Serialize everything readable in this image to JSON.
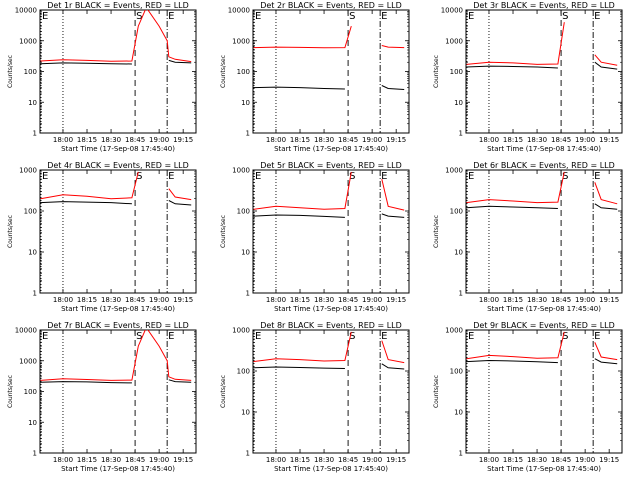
{
  "chart_data": [
    {
      "type": "line",
      "title": "Det 1r BLACK = Events, RED = LLD",
      "xlabel": "Start Time (17-Sep-08 17:45:40)",
      "ylabel": "Counts/sec",
      "yscale": "log",
      "ylim": [
        1,
        10000
      ],
      "x_ticks": [
        "18:00",
        "18:15",
        "18:30",
        "18:45",
        "19:00",
        "19:15"
      ],
      "y_ticks": [
        "1",
        "10",
        "100",
        "1000",
        "10000"
      ],
      "event_markers": [
        {
          "label": "E",
          "time": "17:45:40",
          "style": "dotted"
        },
        {
          "time": "18:00",
          "style": "dotted"
        },
        {
          "label": "S",
          "time": "18:45",
          "style": "dashed"
        },
        {
          "label": "E",
          "time": "19:05",
          "style": "dash-dot"
        }
      ],
      "series": [
        {
          "name": "Events",
          "color": "#000000",
          "x": [
            "17:46",
            "18:00",
            "18:15",
            "18:30",
            "18:43",
            "18:47",
            "18:52",
            "19:00",
            "19:05",
            "19:06",
            "19:10",
            "19:20"
          ],
          "values": [
            180,
            190,
            185,
            180,
            175,
            null,
            null,
            null,
            null,
            230,
            200,
            190
          ]
        },
        {
          "name": "LLD",
          "color": "#ff0000",
          "x": [
            "17:46",
            "18:00",
            "18:15",
            "18:30",
            "18:43",
            "18:47",
            "18:52",
            "19:00",
            "19:05",
            "19:06",
            "19:10",
            "19:20"
          ],
          "values": [
            220,
            240,
            230,
            215,
            220,
            3000,
            12000,
            3000,
            1000,
            300,
            250,
            210
          ]
        }
      ]
    },
    {
      "type": "line",
      "title": "Det 2r BLACK = Events, RED = LLD",
      "xlabel": "Start Time (17-Sep-08 17:45:40)",
      "ylabel": "Counts/sec",
      "yscale": "log",
      "ylim": [
        1,
        10000
      ],
      "x_ticks": [
        "18:00",
        "18:15",
        "18:30",
        "18:45",
        "19:00",
        "19:15"
      ],
      "y_ticks": [
        "1",
        "10",
        "100",
        "1000",
        "10000"
      ],
      "event_markers": [
        {
          "label": "E",
          "time": "17:45:40",
          "style": "dotted"
        },
        {
          "time": "18:00",
          "style": "dotted"
        },
        {
          "label": "S",
          "time": "18:45",
          "style": "dashed"
        },
        {
          "label": "E",
          "time": "19:05",
          "style": "dash-dot"
        }
      ],
      "series": [
        {
          "name": "Events",
          "color": "#000000",
          "x": [
            "17:46",
            "18:00",
            "18:15",
            "18:30",
            "18:43",
            "18:47",
            "18:52",
            "19:00",
            "19:05",
            "19:06",
            "19:10",
            "19:20"
          ],
          "values": [
            30,
            31,
            30,
            28,
            27,
            null,
            null,
            null,
            null,
            35,
            28,
            26
          ]
        },
        {
          "name": "LLD",
          "color": "#ff0000",
          "x": [
            "17:46",
            "18:00",
            "18:15",
            "18:30",
            "18:43",
            "18:47",
            "18:52",
            "19:00",
            "19:05",
            "19:06",
            "19:10",
            "19:20"
          ],
          "values": [
            600,
            620,
            610,
            590,
            600,
            3000,
            null,
            null,
            null,
            700,
            620,
            600
          ]
        }
      ]
    },
    {
      "type": "line",
      "title": "Det 3r BLACK = Events, RED = LLD",
      "xlabel": "Start Time (17-Sep-08 17:45:40)",
      "ylabel": "Counts/sec",
      "yscale": "log",
      "ylim": [
        1,
        10000
      ],
      "x_ticks": [
        "18:00",
        "18:15",
        "18:30",
        "18:45",
        "19:00",
        "19:15"
      ],
      "y_ticks": [
        "1",
        "10",
        "100",
        "1000",
        "10000"
      ],
      "event_markers": [
        {
          "label": "E",
          "time": "17:45:40",
          "style": "dotted"
        },
        {
          "time": "18:00",
          "style": "dotted"
        },
        {
          "label": "S",
          "time": "18:45",
          "style": "dashed"
        },
        {
          "label": "E",
          "time": "19:05",
          "style": "dash-dot"
        }
      ],
      "series": [
        {
          "name": "Events",
          "color": "#000000",
          "x": [
            "17:46",
            "18:00",
            "18:15",
            "18:30",
            "18:43",
            "18:47",
            "18:52",
            "19:00",
            "19:05",
            "19:06",
            "19:10",
            "19:20"
          ],
          "values": [
            140,
            150,
            145,
            140,
            130,
            null,
            null,
            null,
            null,
            200,
            140,
            120
          ]
        },
        {
          "name": "LLD",
          "color": "#ff0000",
          "x": [
            "17:46",
            "18:00",
            "18:15",
            "18:30",
            "18:43",
            "18:47",
            "18:52",
            "19:00",
            "19:05",
            "19:06",
            "19:10",
            "19:20"
          ],
          "values": [
            170,
            200,
            190,
            170,
            175,
            4000,
            null,
            null,
            null,
            350,
            200,
            160
          ]
        }
      ]
    },
    {
      "type": "line",
      "title": "Det 4r BLACK = Events, RED = LLD",
      "xlabel": "Start Time (17-Sep-08 17:45:40)",
      "ylabel": "Counts/sec",
      "yscale": "log",
      "ylim": [
        1,
        1000
      ],
      "x_ticks": [
        "18:00",
        "18:15",
        "18:30",
        "18:45",
        "19:00",
        "19:15"
      ],
      "y_ticks": [
        "1",
        "10",
        "100",
        "1000"
      ],
      "event_markers": [
        {
          "label": "E",
          "time": "17:45:40",
          "style": "dotted"
        },
        {
          "time": "18:00",
          "style": "dotted"
        },
        {
          "label": "S",
          "time": "18:45",
          "style": "dashed"
        },
        {
          "label": "E",
          "time": "19:05",
          "style": "dash-dot"
        }
      ],
      "series": [
        {
          "name": "Events",
          "color": "#000000",
          "x": [
            "17:46",
            "18:00",
            "18:15",
            "18:30",
            "18:43",
            "18:47",
            "18:52",
            "19:00",
            "19:05",
            "19:06",
            "19:10",
            "19:20"
          ],
          "values": [
            160,
            170,
            165,
            160,
            150,
            null,
            null,
            null,
            null,
            180,
            150,
            140
          ]
        },
        {
          "name": "LLD",
          "color": "#ff0000",
          "x": [
            "17:46",
            "18:00",
            "18:15",
            "18:30",
            "18:43",
            "18:47",
            "18:52",
            "19:00",
            "19:05",
            "19:06",
            "19:10",
            "19:20"
          ],
          "values": [
            200,
            250,
            230,
            200,
            210,
            900,
            null,
            null,
            null,
            350,
            220,
            190
          ]
        }
      ]
    },
    {
      "type": "line",
      "title": "Det 5r BLACK = Events, RED = LLD",
      "xlabel": "Start Time (17-Sep-08 17:45:40)",
      "ylabel": "Counts/sec",
      "yscale": "log",
      "ylim": [
        1,
        1000
      ],
      "x_ticks": [
        "18:00",
        "18:15",
        "18:30",
        "18:45",
        "19:00",
        "19:15"
      ],
      "y_ticks": [
        "1",
        "10",
        "100",
        "1000"
      ],
      "event_markers": [
        {
          "label": "E",
          "time": "17:45:40",
          "style": "dotted"
        },
        {
          "time": "18:00",
          "style": "dotted"
        },
        {
          "label": "S",
          "time": "18:45",
          "style": "dashed"
        },
        {
          "label": "E",
          "time": "19:05",
          "style": "dash-dot"
        }
      ],
      "series": [
        {
          "name": "Events",
          "color": "#000000",
          "x": [
            "17:46",
            "18:00",
            "18:15",
            "18:30",
            "18:43",
            "18:47",
            "18:52",
            "19:00",
            "19:05",
            "19:06",
            "19:10",
            "19:20"
          ],
          "values": [
            75,
            80,
            78,
            74,
            70,
            null,
            null,
            null,
            null,
            85,
            75,
            70
          ]
        },
        {
          "name": "LLD",
          "color": "#ff0000",
          "x": [
            "17:46",
            "18:00",
            "18:15",
            "18:30",
            "18:43",
            "18:47",
            "18:52",
            "19:00",
            "19:05",
            "19:06",
            "19:10",
            "19:20"
          ],
          "values": [
            110,
            130,
            120,
            110,
            115,
            900,
            null,
            null,
            null,
            600,
            130,
            105
          ]
        }
      ]
    },
    {
      "type": "line",
      "title": "Det 6r BLACK = Events, RED = LLD",
      "xlabel": "Start Time (17-Sep-08 17:45:40)",
      "ylabel": "Counts/sec",
      "yscale": "log",
      "ylim": [
        1,
        1000
      ],
      "x_ticks": [
        "18:00",
        "18:15",
        "18:30",
        "18:45",
        "19:00",
        "19:15"
      ],
      "y_ticks": [
        "1",
        "10",
        "100",
        "1000"
      ],
      "event_markers": [
        {
          "label": "E",
          "time": "17:45:40",
          "style": "dotted"
        },
        {
          "time": "18:00",
          "style": "dotted"
        },
        {
          "label": "S",
          "time": "18:45",
          "style": "dashed"
        },
        {
          "label": "E",
          "time": "19:05",
          "style": "dash-dot"
        }
      ],
      "series": [
        {
          "name": "Events",
          "color": "#000000",
          "x": [
            "17:46",
            "18:00",
            "18:15",
            "18:30",
            "18:43",
            "18:47",
            "18:52",
            "19:00",
            "19:05",
            "19:06",
            "19:10",
            "19:20"
          ],
          "values": [
            120,
            130,
            125,
            120,
            115,
            null,
            null,
            null,
            null,
            150,
            120,
            110
          ]
        },
        {
          "name": "LLD",
          "color": "#ff0000",
          "x": [
            "17:46",
            "18:00",
            "18:15",
            "18:30",
            "18:43",
            "18:47",
            "18:52",
            "19:00",
            "19:05",
            "19:06",
            "19:10",
            "19:20"
          ],
          "values": [
            160,
            190,
            175,
            160,
            165,
            900,
            null,
            null,
            null,
            500,
            190,
            150
          ]
        }
      ]
    },
    {
      "type": "line",
      "title": "Det 7r BLACK = Events, RED = LLD",
      "xlabel": "Start Time (17-Sep-08 17:45:40)",
      "ylabel": "Counts/sec",
      "yscale": "log",
      "ylim": [
        1,
        10000
      ],
      "x_ticks": [
        "18:00",
        "18:15",
        "18:30",
        "18:45",
        "19:00",
        "19:15"
      ],
      "y_ticks": [
        "1",
        "10",
        "100",
        "1000",
        "10000"
      ],
      "event_markers": [
        {
          "label": "E",
          "time": "17:45:40",
          "style": "dotted"
        },
        {
          "time": "18:00",
          "style": "dotted"
        },
        {
          "label": "S",
          "time": "18:45",
          "style": "dashed"
        },
        {
          "label": "E",
          "time": "19:05",
          "style": "dash-dot"
        }
      ],
      "series": [
        {
          "name": "Events",
          "color": "#000000",
          "x": [
            "17:46",
            "18:00",
            "18:15",
            "18:30",
            "18:43",
            "18:47",
            "18:52",
            "19:00",
            "19:05",
            "19:06",
            "19:10",
            "19:20"
          ],
          "values": [
            200,
            210,
            205,
            195,
            190,
            null,
            null,
            null,
            null,
            240,
            210,
            200
          ]
        },
        {
          "name": "LLD",
          "color": "#ff0000",
          "x": [
            "17:46",
            "18:00",
            "18:15",
            "18:30",
            "18:43",
            "18:47",
            "18:52",
            "19:00",
            "19:05",
            "19:06",
            "19:10",
            "19:20"
          ],
          "values": [
            230,
            260,
            245,
            230,
            235,
            3000,
            12000,
            3000,
            1000,
            300,
            250,
            230
          ]
        }
      ]
    },
    {
      "type": "line",
      "title": "Det 8r BLACK = Events, RED = LLD",
      "xlabel": "Start Time (17-Sep-08 17:45:40)",
      "ylabel": "Counts/sec",
      "yscale": "log",
      "ylim": [
        1,
        1000
      ],
      "x_ticks": [
        "18:00",
        "18:15",
        "18:30",
        "18:45",
        "19:00",
        "19:15"
      ],
      "y_ticks": [
        "1",
        "10",
        "100",
        "1000"
      ],
      "event_markers": [
        {
          "label": "E",
          "time": "17:45:40",
          "style": "dotted"
        },
        {
          "time": "18:00",
          "style": "dotted"
        },
        {
          "label": "S",
          "time": "18:45",
          "style": "dashed"
        },
        {
          "label": "E",
          "time": "19:05",
          "style": "dash-dot"
        }
      ],
      "series": [
        {
          "name": "Events",
          "color": "#000000",
          "x": [
            "17:46",
            "18:00",
            "18:15",
            "18:30",
            "18:43",
            "18:47",
            "18:52",
            "19:00",
            "19:05",
            "19:06",
            "19:10",
            "19:20"
          ],
          "values": [
            120,
            125,
            122,
            118,
            115,
            null,
            null,
            null,
            null,
            150,
            120,
            112
          ]
        },
        {
          "name": "LLD",
          "color": "#ff0000",
          "x": [
            "17:46",
            "18:00",
            "18:15",
            "18:30",
            "18:43",
            "18:47",
            "18:52",
            "19:00",
            "19:05",
            "19:06",
            "19:10",
            "19:20"
          ],
          "values": [
            170,
            200,
            190,
            175,
            180,
            900,
            null,
            null,
            null,
            550,
            190,
            160
          ]
        }
      ]
    },
    {
      "type": "line",
      "title": "Det 9r BLACK = Events, RED = LLD",
      "xlabel": "Start Time (17-Sep-08 17:45:40)",
      "ylabel": "Counts/sec",
      "yscale": "log",
      "ylim": [
        1,
        1000
      ],
      "x_ticks": [
        "18:00",
        "18:15",
        "18:30",
        "18:45",
        "19:00",
        "19:15"
      ],
      "y_ticks": [
        "1",
        "10",
        "100",
        "1000"
      ],
      "event_markers": [
        {
          "label": "E",
          "time": "17:45:40",
          "style": "dotted"
        },
        {
          "time": "18:00",
          "style": "dotted"
        },
        {
          "label": "S",
          "time": "18:45",
          "style": "dashed"
        },
        {
          "label": "E",
          "time": "19:05",
          "style": "dash-dot"
        }
      ],
      "series": [
        {
          "name": "Events",
          "color": "#000000",
          "x": [
            "17:46",
            "18:00",
            "18:15",
            "18:30",
            "18:43",
            "18:47",
            "18:52",
            "19:00",
            "19:05",
            "19:06",
            "19:10",
            "19:20"
          ],
          "values": [
            170,
            180,
            175,
            168,
            160,
            null,
            null,
            null,
            null,
            200,
            165,
            150
          ]
        },
        {
          "name": "LLD",
          "color": "#ff0000",
          "x": [
            "17:46",
            "18:00",
            "18:15",
            "18:30",
            "18:43",
            "18:47",
            "18:52",
            "19:00",
            "19:05",
            "19:06",
            "19:10",
            "19:20"
          ],
          "values": [
            200,
            240,
            225,
            205,
            210,
            900,
            null,
            null,
            null,
            500,
            220,
            190
          ]
        }
      ]
    }
  ]
}
